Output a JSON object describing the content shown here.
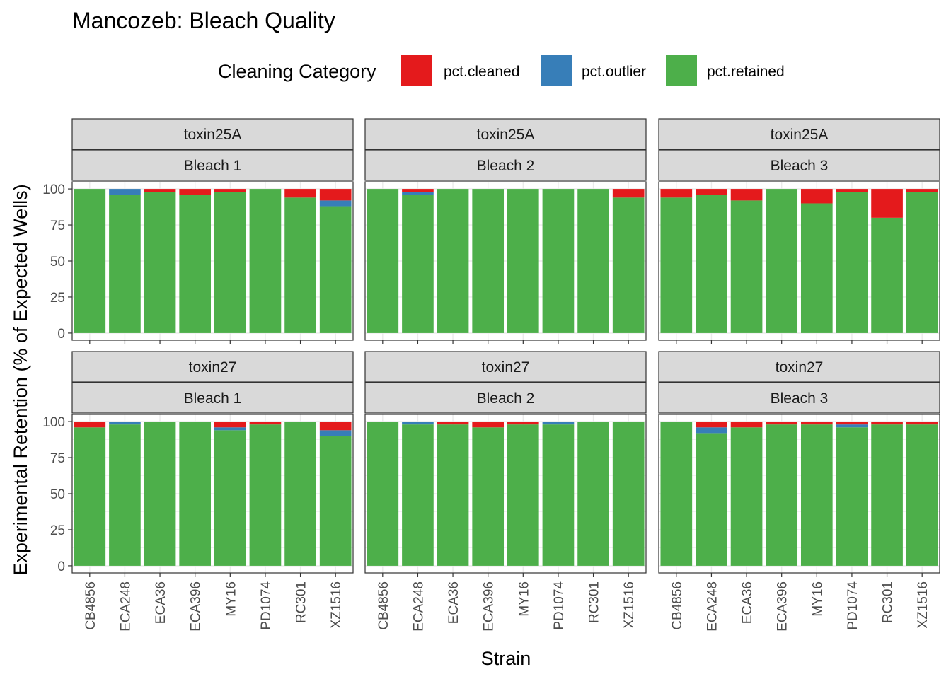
{
  "chart_data": {
    "type": "bar",
    "stacked": true,
    "title": "Mancozeb: Bleach Quality",
    "xlabel": "Strain",
    "ylabel": "Experimental Retention (% of Expected Wells)",
    "ylim": [
      0,
      100
    ],
    "yticks": [
      "0",
      "25",
      "50",
      "75",
      "100"
    ],
    "categories": [
      "CB4856",
      "ECA248",
      "ECA36",
      "ECA396",
      "MY16",
      "PD1074",
      "RC301",
      "XZ1516"
    ],
    "legend": {
      "title": "Cleaning Category",
      "position": "top",
      "items": [
        {
          "key": "cleaned",
          "label": "pct.cleaned",
          "color": "#E41A1C"
        },
        {
          "key": "outlier",
          "label": "pct.outlier",
          "color": "#377EB8"
        },
        {
          "key": "retained",
          "label": "pct.retained",
          "color": "#4DAF4A"
        }
      ]
    },
    "panels": [
      {
        "strip_top": "toxin25A",
        "strip_bottom": "Bleach 1",
        "retained": [
          100,
          96,
          98,
          96,
          98,
          100,
          94,
          88
        ],
        "outlier": [
          0,
          4,
          0,
          0,
          0,
          0,
          0,
          4
        ],
        "cleaned": [
          0,
          0,
          2,
          4,
          2,
          0,
          6,
          8
        ]
      },
      {
        "strip_top": "toxin25A",
        "strip_bottom": "Bleach 2",
        "retained": [
          100,
          96,
          100,
          100,
          100,
          100,
          100,
          94
        ],
        "outlier": [
          0,
          2,
          0,
          0,
          0,
          0,
          0,
          0
        ],
        "cleaned": [
          0,
          2,
          0,
          0,
          0,
          0,
          0,
          6
        ]
      },
      {
        "strip_top": "toxin25A",
        "strip_bottom": "Bleach 3",
        "retained": [
          94,
          96,
          92,
          100,
          90,
          98,
          80,
          98
        ],
        "outlier": [
          0,
          0,
          0,
          0,
          0,
          0,
          0,
          0
        ],
        "cleaned": [
          6,
          4,
          8,
          0,
          10,
          2,
          20,
          2
        ]
      },
      {
        "strip_top": "toxin27",
        "strip_bottom": "Bleach 1",
        "retained": [
          96,
          98,
          100,
          100,
          94,
          98,
          100,
          90
        ],
        "outlier": [
          0,
          2,
          0,
          0,
          2,
          0,
          0,
          4
        ],
        "cleaned": [
          4,
          0,
          0,
          0,
          4,
          2,
          0,
          6
        ]
      },
      {
        "strip_top": "toxin27",
        "strip_bottom": "Bleach 2",
        "retained": [
          100,
          98,
          98,
          96,
          98,
          98,
          100,
          100
        ],
        "outlier": [
          0,
          2,
          0,
          0,
          0,
          2,
          0,
          0
        ],
        "cleaned": [
          0,
          0,
          2,
          4,
          2,
          0,
          0,
          0
        ]
      },
      {
        "strip_top": "toxin27",
        "strip_bottom": "Bleach 3",
        "retained": [
          100,
          92,
          96,
          98,
          98,
          96,
          98,
          98
        ],
        "outlier": [
          0,
          4,
          0,
          0,
          0,
          2,
          0,
          0
        ],
        "cleaned": [
          0,
          4,
          4,
          2,
          2,
          2,
          2,
          2
        ]
      }
    ]
  }
}
